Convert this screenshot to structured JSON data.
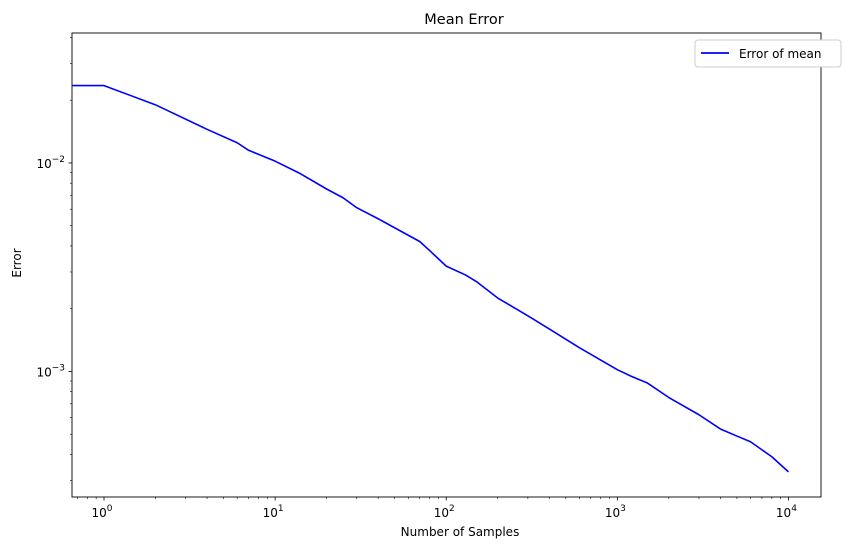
{
  "chart_data": {
    "type": "line",
    "title": "Mean Error",
    "xlabel": "Number of Samples",
    "ylabel": "Error",
    "xscale": "log",
    "yscale": "log",
    "xlim": [
      0.65,
      15500
    ],
    "ylim": [
      0.00025,
      0.042
    ],
    "grid": false,
    "legend": {
      "placement": "top-right",
      "entries": [
        "Error of mean"
      ]
    },
    "x_tick_labels": [
      {
        "value": 1,
        "base": "10",
        "exp": "0"
      },
      {
        "value": 10,
        "base": "10",
        "exp": "1"
      },
      {
        "value": 100,
        "base": "10",
        "exp": "2"
      },
      {
        "value": 1000,
        "base": "10",
        "exp": "3"
      },
      {
        "value": 10000,
        "base": "10",
        "exp": "4"
      }
    ],
    "y_tick_labels": [
      {
        "value": 0.01,
        "base": "10",
        "exp": "−2"
      },
      {
        "value": 0.001,
        "base": "10",
        "exp": "−3"
      }
    ],
    "series": [
      {
        "name": "Error of mean",
        "color": "#0000ff",
        "x": [
          0.65,
          1,
          2,
          4,
          6,
          7,
          10,
          14,
          20,
          25,
          30,
          40,
          60,
          70,
          80,
          100,
          130,
          150,
          200,
          300,
          400,
          600,
          1000,
          1200,
          1500,
          2000,
          3000,
          4000,
          5000,
          6000,
          8000,
          10000
        ],
        "y": [
          0.0235,
          0.0235,
          0.019,
          0.0145,
          0.0125,
          0.0115,
          0.0102,
          0.0089,
          0.0075,
          0.0068,
          0.0061,
          0.0054,
          0.0045,
          0.0042,
          0.0038,
          0.0032,
          0.0029,
          0.0027,
          0.00225,
          0.00185,
          0.0016,
          0.0013,
          0.00102,
          0.00095,
          0.00088,
          0.00075,
          0.00062,
          0.00053,
          0.00049,
          0.00046,
          0.00039,
          0.00033
        ]
      }
    ]
  }
}
